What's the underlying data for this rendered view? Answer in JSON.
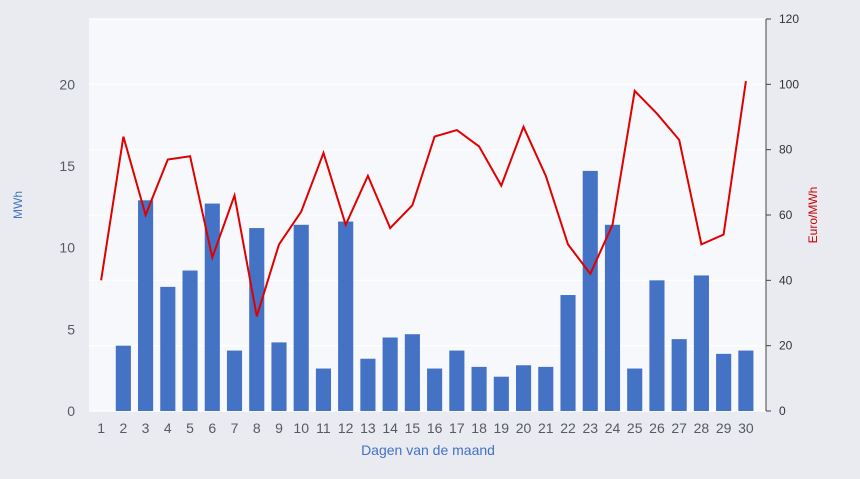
{
  "chart_data": {
    "type": "bar",
    "categories": [
      "1",
      "2",
      "3",
      "4",
      "5",
      "6",
      "7",
      "8",
      "9",
      "10",
      "11",
      "12",
      "13",
      "14",
      "15",
      "16",
      "17",
      "18",
      "19",
      "20",
      "21",
      "22",
      "23",
      "24",
      "25",
      "26",
      "27",
      "28",
      "29",
      "30"
    ],
    "series": [
      {
        "kind": "bar",
        "axis": "left",
        "color": "#4472c4",
        "values": [
          0,
          4.0,
          12.9,
          7.6,
          8.6,
          12.7,
          3.7,
          11.2,
          4.2,
          11.4,
          2.6,
          11.6,
          3.2,
          4.5,
          4.7,
          2.6,
          3.7,
          2.7,
          2.1,
          2.8,
          2.7,
          7.1,
          14.7,
          11.4,
          2.6,
          8.0,
          4.4,
          8.3,
          3.5,
          3.7
        ]
      },
      {
        "kind": "line",
        "axis": "right",
        "color": "#e00000",
        "values": [
          40,
          84,
          60,
          77,
          78,
          47,
          66,
          29,
          51,
          61,
          79,
          57,
          72,
          56,
          63,
          84,
          86,
          81,
          69,
          87,
          72,
          51,
          42,
          57,
          98,
          91,
          83,
          51,
          54,
          101
        ]
      }
    ],
    "xlabel": "Dagen van de maand",
    "ylabel": "MWh",
    "y2label": "Euro/MWh",
    "ylim": [
      0,
      24
    ],
    "y2lim": [
      0,
      120
    ],
    "yticks": [
      "0",
      "5",
      "10",
      "15",
      "20"
    ],
    "y2ticks": [
      "0",
      "20",
      "40",
      "60",
      "80",
      "100",
      "120"
    ],
    "grid": true,
    "legend": "none"
  }
}
